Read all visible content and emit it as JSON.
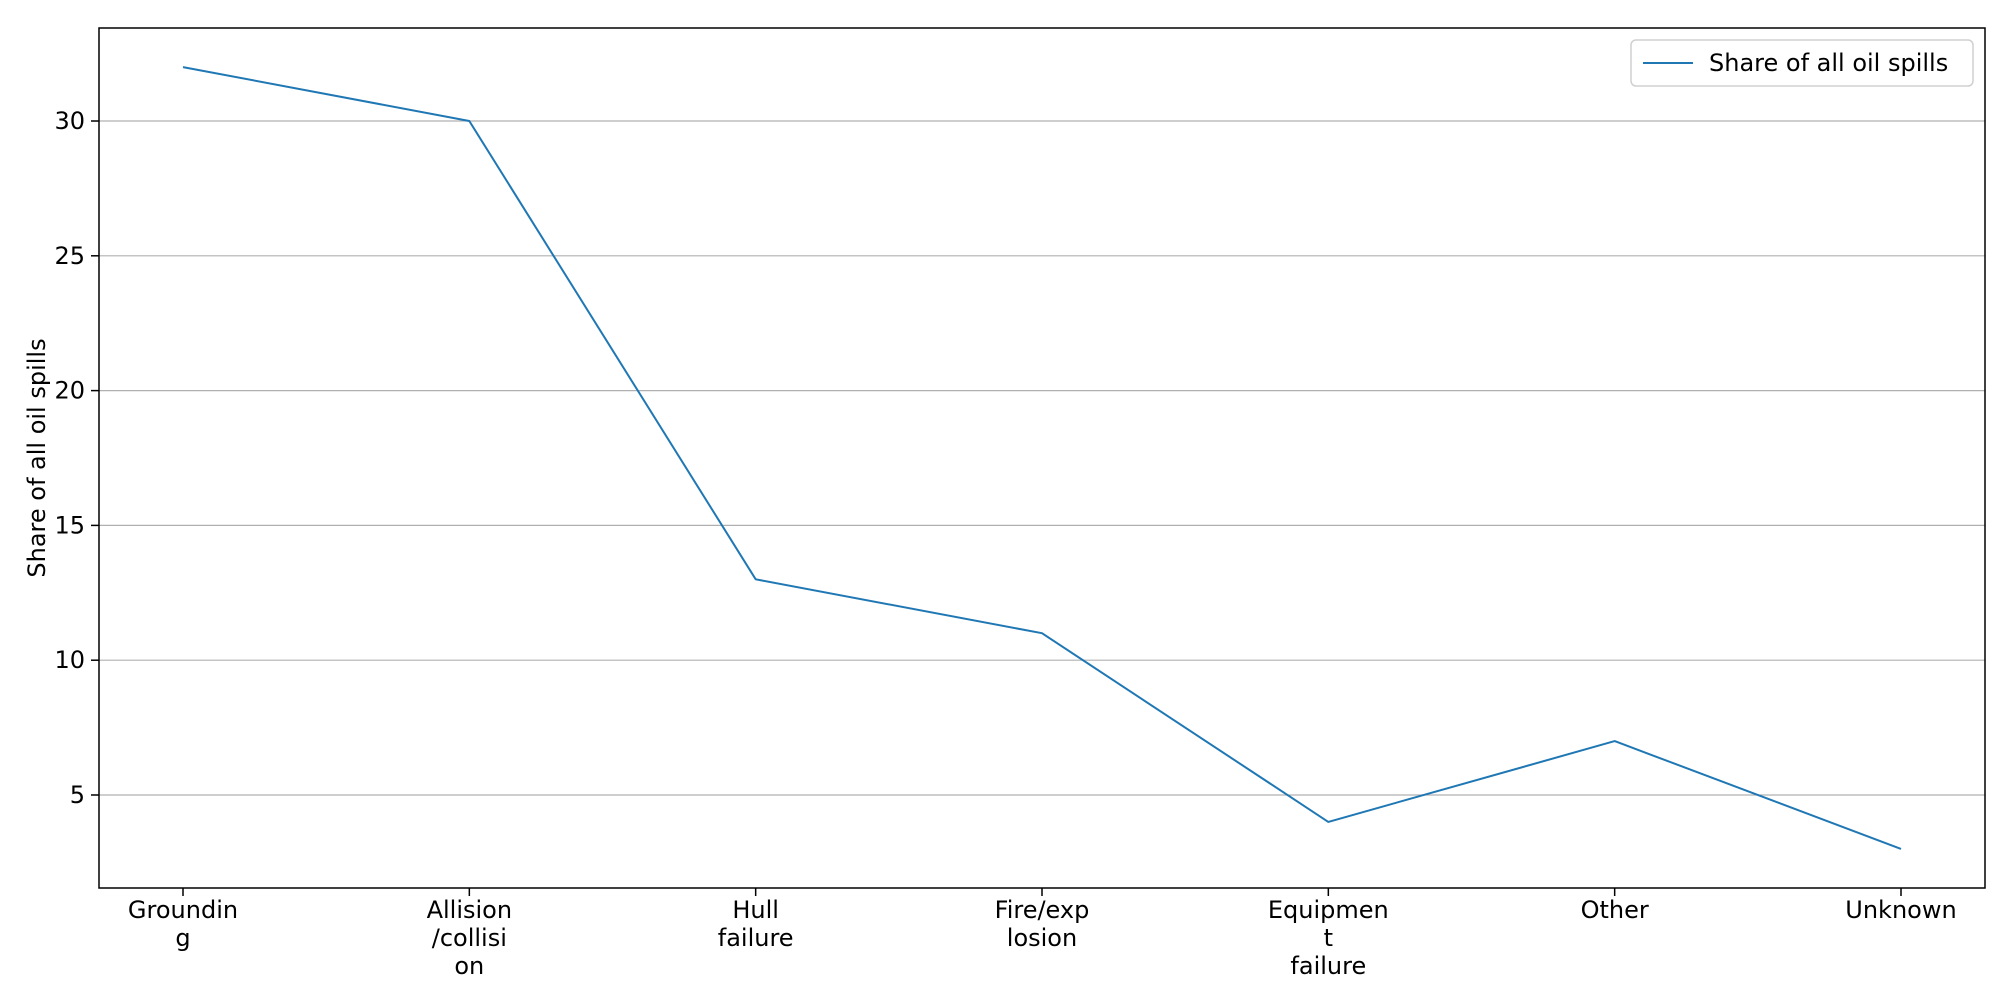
{
  "chart_data": {
    "type": "line",
    "categories": [
      [
        "Groundin",
        "g"
      ],
      [
        "Allision",
        "/collisi",
        "on"
      ],
      [
        "Hull",
        "failure"
      ],
      [
        "Fire/exp",
        "losion"
      ],
      [
        "Equipmen",
        "t",
        "failure"
      ],
      [
        "Other"
      ],
      [
        "Unknown"
      ]
    ],
    "series": [
      {
        "name": "Share of all oil spills",
        "values": [
          32,
          30,
          13,
          11,
          4,
          7,
          3
        ],
        "color": "#1f77b4"
      }
    ],
    "ylabel": "Share of all oil spills",
    "xlabel": "",
    "ylim": [
      1.55,
      33.45
    ],
    "yticks": [
      5,
      10,
      15,
      20,
      25,
      30
    ],
    "grid": "y",
    "grid_color": "#b0b0b0",
    "legend_position": "top-right"
  }
}
